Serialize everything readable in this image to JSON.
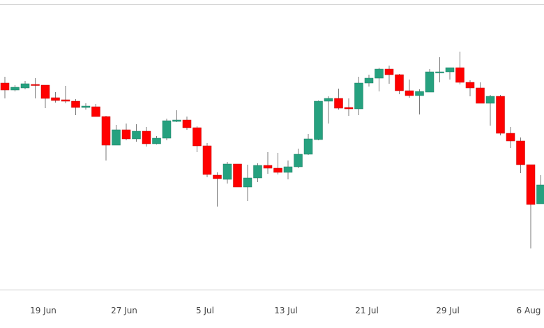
{
  "chart_data": {
    "type": "candlestick",
    "title": "",
    "xlabel": "",
    "ylabel": "",
    "ylim": [
      6,
      414
    ],
    "grid": false,
    "legend": "none",
    "colors": {
      "up": "#26a17f",
      "down": "#ff0000",
      "wick": "#7a7a7a",
      "axis": "#cccccc"
    },
    "x": [
      "15 Jun",
      "16 Jun",
      "17 Jun",
      "18 Jun",
      "19 Jun",
      "20 Jun",
      "21 Jun",
      "22 Jun",
      "23 Jun",
      "24 Jun",
      "25 Jun",
      "26 Jun",
      "27 Jun",
      "28 Jun",
      "29 Jun",
      "30 Jun",
      "1 Jul",
      "2 Jul",
      "3 Jul",
      "4 Jul",
      "5 Jul",
      "6 Jul",
      "7 Jul",
      "8 Jul",
      "9 Jul",
      "10 Jul",
      "11 Jul",
      "12 Jul",
      "13 Jul",
      "14 Jul",
      "15 Jul",
      "16 Jul",
      "17 Jul",
      "18 Jul",
      "19 Jul",
      "20 Jul",
      "21 Jul",
      "22 Jul",
      "23 Jul",
      "24 Jul",
      "25 Jul",
      "26 Jul",
      "27 Jul",
      "28 Jul",
      "29 Jul",
      "30 Jul",
      "31 Jul",
      "1 Aug",
      "2 Aug",
      "3 Aug",
      "4 Aug",
      "5 Aug",
      "6 Aug",
      "7 Aug"
    ],
    "ohlc": [
      [
        301,
        310,
        279,
        291
      ],
      [
        291,
        298,
        289,
        295
      ],
      [
        294,
        304,
        292,
        300
      ],
      [
        299,
        308,
        279,
        298
      ],
      [
        298,
        298,
        265,
        279
      ],
      [
        280,
        288,
        273,
        276
      ],
      [
        277,
        297,
        272,
        275
      ],
      [
        275,
        278,
        255,
        266
      ],
      [
        266,
        272,
        263,
        268
      ],
      [
        267,
        271,
        253,
        253
      ],
      [
        253,
        254,
        190,
        212
      ],
      [
        212,
        241,
        212,
        234
      ],
      [
        234,
        243,
        219,
        221
      ],
      [
        221,
        242,
        217,
        232
      ],
      [
        232,
        238,
        210,
        214
      ],
      [
        214,
        225,
        213,
        222
      ],
      [
        222,
        250,
        219,
        247
      ],
      [
        246,
        262,
        245,
        248
      ],
      [
        248,
        253,
        234,
        237
      ],
      [
        237,
        239,
        202,
        211
      ],
      [
        211,
        215,
        166,
        170
      ],
      [
        169,
        173,
        124,
        164
      ],
      [
        163,
        188,
        157,
        185
      ],
      [
        185,
        185,
        152,
        152
      ],
      [
        152,
        184,
        132,
        165
      ],
      [
        165,
        186,
        159,
        183
      ],
      [
        183,
        202,
        171,
        179
      ],
      [
        179,
        201,
        170,
        173
      ],
      [
        173,
        190,
        163,
        181
      ],
      [
        181,
        207,
        179,
        199
      ],
      [
        199,
        228,
        198,
        221
      ],
      [
        220,
        276,
        219,
        275
      ],
      [
        275,
        282,
        243,
        279
      ],
      [
        279,
        293,
        263,
        265
      ],
      [
        266,
        279,
        254,
        264
      ],
      [
        264,
        310,
        255,
        301
      ],
      [
        301,
        313,
        296,
        308
      ],
      [
        308,
        323,
        289,
        321
      ],
      [
        321,
        326,
        300,
        313
      ],
      [
        313,
        314,
        285,
        290
      ],
      [
        290,
        306,
        280,
        283
      ],
      [
        283,
        292,
        256,
        289
      ],
      [
        288,
        321,
        288,
        317
      ],
      [
        317,
        338,
        302,
        317
      ],
      [
        317,
        323,
        306,
        323
      ],
      [
        323,
        346,
        299,
        302
      ],
      [
        302,
        305,
        282,
        294
      ],
      [
        294,
        302,
        272,
        272
      ],
      [
        272,
        284,
        240,
        282
      ],
      [
        282,
        284,
        226,
        229
      ],
      [
        229,
        238,
        208,
        218
      ],
      [
        218,
        223,
        172,
        184
      ],
      [
        184,
        184,
        64,
        127
      ],
      [
        128,
        169,
        128,
        155
      ]
    ],
    "xticks": [
      {
        "index": 4,
        "label": "19 Jun"
      },
      {
        "index": 12,
        "label": "27 Jun"
      },
      {
        "index": 20,
        "label": "5 Jul"
      },
      {
        "index": 28,
        "label": "13 Jul"
      },
      {
        "index": 36,
        "label": "21 Jul"
      },
      {
        "index": 44,
        "label": "29 Jul"
      },
      {
        "index": 52,
        "label": "6 Aug"
      }
    ]
  }
}
